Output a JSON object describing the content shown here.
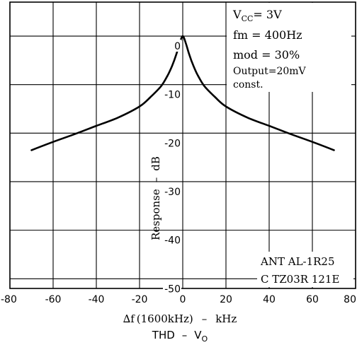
{
  "chart_data": {
    "type": "line",
    "xlim": [
      -80,
      80
    ],
    "ylim": [
      -52,
      7
    ],
    "x_ticks": [
      -80,
      -60,
      -40,
      -20,
      0,
      20,
      40,
      60,
      80
    ],
    "x_tick_labels": [
      "-80",
      "-60",
      "-40",
      "-20",
      "0",
      "20",
      "40",
      "60",
      "80"
    ],
    "y_ticks": [
      0,
      -10,
      -20,
      -30,
      -40,
      -50
    ],
    "y_tick_labels": [
      "0",
      "-10",
      "-20",
      "-30",
      "-40",
      "-50"
    ],
    "grid": true,
    "series": [
      {
        "x": [
          -70,
          -60,
          -50,
          -40,
          -30,
          -20,
          -15,
          -10,
          -7,
          -5,
          -3,
          -1.5,
          0,
          1.5,
          3,
          5,
          7,
          10,
          15,
          20,
          30,
          40,
          50,
          60,
          70
        ],
        "y": [
          -23.5,
          -21.8,
          -20.2,
          -18.5,
          -16.8,
          -14.5,
          -12.6,
          -10.3,
          -8.1,
          -6.2,
          -3.8,
          -1.6,
          0,
          -1.6,
          -3.8,
          -6.2,
          -8.1,
          -10.3,
          -12.6,
          -14.5,
          -16.8,
          -18.5,
          -20.2,
          -21.8,
          -23.5
        ]
      }
    ],
    "ylabel_parts": {
      "quantity": "Response",
      "dash": "–",
      "unit": "dB"
    },
    "xlabel_parts": {
      "delta": "∆f",
      "qualifier": "(1600kHz)",
      "dash": "–",
      "unit": "kHz"
    },
    "subtitle_parts": {
      "quantity": "THD",
      "dash": "–",
      "v": "V",
      "sub": "O"
    },
    "conditions": {
      "vcc": {
        "base": "V",
        "sub": "CC",
        "rest": "= 3V"
      },
      "fm": "fm = 400Hz",
      "mod": "mod = 30%",
      "output": "Output=20mV",
      "const": "const."
    },
    "part_numbers": {
      "ant": "ANT AL-1R25",
      "c": "C TZ03R 121E"
    }
  }
}
